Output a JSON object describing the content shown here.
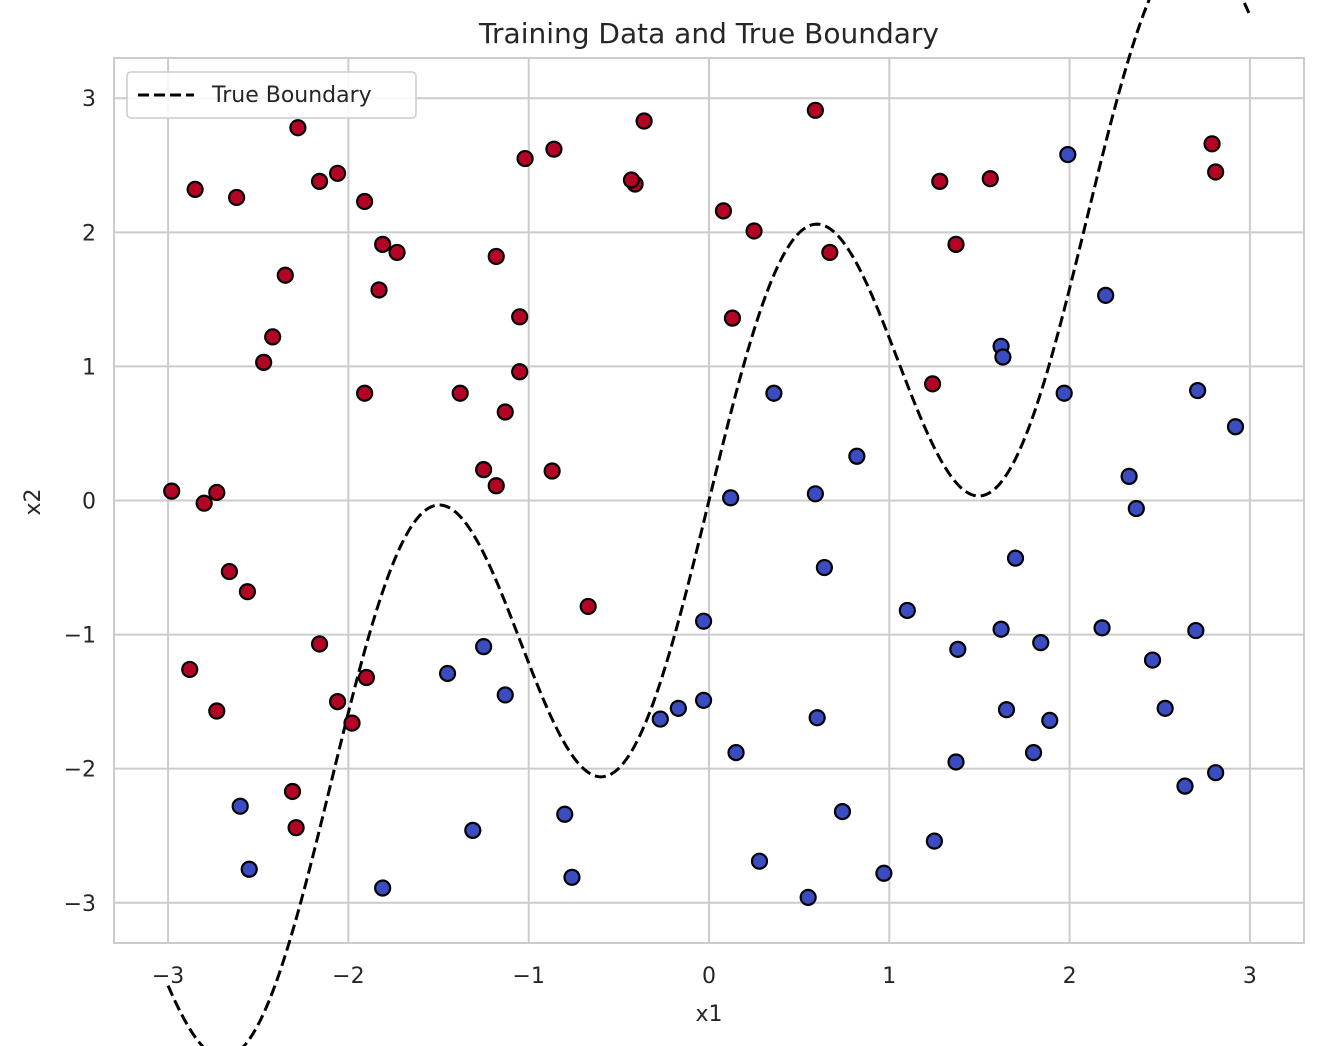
{
  "chart_data": {
    "type": "scatter",
    "title": "Training Data and True Boundary",
    "xlabel": "x1",
    "ylabel": "x2",
    "xlim": [
      -3.3,
      3.3
    ],
    "ylim": [
      -3.3,
      3.3
    ],
    "xticks": [
      -3,
      -2,
      -1,
      0,
      1,
      2,
      3
    ],
    "yticks": [
      -3,
      -2,
      -1,
      0,
      1,
      2,
      3
    ],
    "grid": true,
    "legend": {
      "placement": "top-left",
      "entries": [
        "True Boundary"
      ]
    },
    "colors": {
      "class_red": "#b40426",
      "class_blue": "#3b4cc0",
      "boundary": "#000000",
      "grid": "#cccccc"
    },
    "boundary": {
      "name": "True Boundary",
      "style": "dashed",
      "function": "x2 = x1 + 1.5*sin(3*x1)",
      "x_range": [
        -3,
        3
      ]
    },
    "series": [
      {
        "class": "red",
        "points": [
          [
            -2.85,
            2.32
          ],
          [
            -2.62,
            2.26
          ],
          [
            -2.28,
            2.78
          ],
          [
            -2.16,
            2.38
          ],
          [
            -2.06,
            2.44
          ],
          [
            -1.91,
            2.23
          ],
          [
            -1.81,
            1.91
          ],
          [
            -1.73,
            1.85
          ],
          [
            -1.83,
            1.57
          ],
          [
            -2.35,
            1.68
          ],
          [
            -2.42,
            1.22
          ],
          [
            -2.47,
            1.03
          ],
          [
            -1.91,
            0.8
          ],
          [
            -2.98,
            0.07
          ],
          [
            -2.8,
            -0.02
          ],
          [
            -2.73,
            0.06
          ],
          [
            -2.66,
            -0.53
          ],
          [
            -2.56,
            -0.68
          ],
          [
            -2.88,
            -1.26
          ],
          [
            -2.73,
            -1.57
          ],
          [
            -2.16,
            -1.07
          ],
          [
            -2.06,
            -1.5
          ],
          [
            -1.98,
            -1.66
          ],
          [
            -1.9,
            -1.32
          ],
          [
            -2.31,
            -2.17
          ],
          [
            -2.29,
            -2.44
          ],
          [
            -1.38,
            0.8
          ],
          [
            -1.25,
            0.23
          ],
          [
            -1.18,
            0.11
          ],
          [
            -1.13,
            0.66
          ],
          [
            -1.05,
            0.96
          ],
          [
            -1.05,
            1.37
          ],
          [
            -1.18,
            1.82
          ],
          [
            -1.02,
            2.55
          ],
          [
            -0.86,
            2.62
          ],
          [
            -0.36,
            2.83
          ],
          [
            -0.41,
            2.36
          ],
          [
            -0.43,
            2.39
          ],
          [
            -0.87,
            0.22
          ],
          [
            -0.67,
            -0.79
          ],
          [
            0.08,
            2.16
          ],
          [
            0.25,
            2.01
          ],
          [
            0.13,
            1.36
          ],
          [
            0.59,
            2.91
          ],
          [
            0.67,
            1.85
          ],
          [
            1.28,
            2.38
          ],
          [
            1.56,
            2.4
          ],
          [
            1.37,
            1.91
          ],
          [
            1.24,
            0.87
          ],
          [
            2.79,
            2.66
          ],
          [
            2.81,
            2.45
          ]
        ]
      },
      {
        "class": "blue",
        "points": [
          [
            -2.6,
            -2.28
          ],
          [
            -2.55,
            -2.75
          ],
          [
            -1.81,
            -2.89
          ],
          [
            -1.45,
            -1.29
          ],
          [
            -1.25,
            -1.09
          ],
          [
            -1.13,
            -1.45
          ],
          [
            -1.31,
            -2.46
          ],
          [
            -0.8,
            -2.34
          ],
          [
            -0.76,
            -2.81
          ],
          [
            -0.03,
            -0.9
          ],
          [
            -0.27,
            -1.63
          ],
          [
            -0.17,
            -1.55
          ],
          [
            -0.03,
            -1.49
          ],
          [
            0.12,
            0.02
          ],
          [
            0.36,
            0.8
          ],
          [
            0.59,
            0.05
          ],
          [
            0.64,
            -0.5
          ],
          [
            0.82,
            0.33
          ],
          [
            0.15,
            -1.88
          ],
          [
            0.6,
            -1.62
          ],
          [
            0.28,
            -2.69
          ],
          [
            0.74,
            -2.32
          ],
          [
            0.55,
            -2.96
          ],
          [
            0.97,
            -2.78
          ],
          [
            1.1,
            -0.82
          ],
          [
            1.38,
            -1.11
          ],
          [
            1.37,
            -1.95
          ],
          [
            1.25,
            -2.54
          ],
          [
            1.62,
            1.15
          ],
          [
            1.63,
            1.07
          ],
          [
            1.97,
            0.8
          ],
          [
            1.99,
            2.58
          ],
          [
            2.2,
            1.53
          ],
          [
            1.7,
            -0.43
          ],
          [
            1.62,
            -0.96
          ],
          [
            1.65,
            -1.56
          ],
          [
            1.84,
            -1.06
          ],
          [
            1.89,
            -1.64
          ],
          [
            1.8,
            -1.88
          ],
          [
            2.18,
            -0.95
          ],
          [
            2.33,
            0.18
          ],
          [
            2.37,
            -0.06
          ],
          [
            2.46,
            -1.19
          ],
          [
            2.53,
            -1.55
          ],
          [
            2.64,
            -2.13
          ],
          [
            2.71,
            0.82
          ],
          [
            2.7,
            -0.97
          ],
          [
            2.81,
            -2.03
          ],
          [
            2.92,
            0.55
          ]
        ]
      }
    ]
  }
}
